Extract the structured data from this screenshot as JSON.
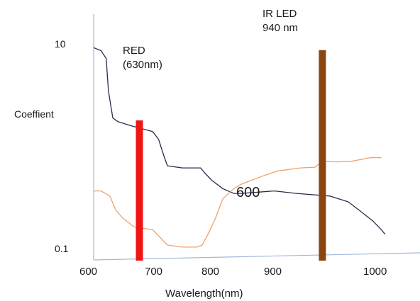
{
  "chart_data": {
    "type": "line",
    "title": "",
    "xlabel": "Wavelength(nm)",
    "ylabel": "Coeffient",
    "y_scale": "log",
    "xlim": [
      600,
      1050
    ],
    "ylim": [
      0.1,
      20
    ],
    "x_ticks": [
      "600",
      "700",
      "800",
      "900",
      "1000"
    ],
    "y_ticks": [
      "10",
      "0.1"
    ],
    "annotation": "600",
    "series": [
      {
        "color": "#2e2a4f",
        "x": [
          600,
          610,
          617,
          620,
          626,
          633,
          650,
          680,
          688,
          695,
          700,
          720,
          745,
          750,
          760,
          775,
          790,
          800,
          845,
          875,
          920,
          945,
          960,
          978,
          990,
          995
        ],
        "y": [
          9.2,
          8.6,
          7.2,
          3.5,
          1.9,
          1.75,
          1.6,
          1.4,
          1.18,
          0.82,
          0.65,
          0.62,
          0.62,
          0.56,
          0.47,
          0.39,
          0.35,
          0.35,
          0.37,
          0.35,
          0.33,
          0.29,
          0.24,
          0.19,
          0.155,
          0.14
        ]
      },
      {
        "color": "#f0a068",
        "x": [
          600,
          610,
          622,
          630,
          640,
          655,
          680,
          700,
          720,
          740,
          747,
          755,
          765,
          775,
          790,
          800,
          830,
          850,
          880,
          900,
          910,
          930,
          950,
          975,
          990
        ],
        "y": [
          0.37,
          0.37,
          0.33,
          0.24,
          0.2,
          0.165,
          0.155,
          0.11,
          0.105,
          0.105,
          0.11,
          0.14,
          0.2,
          0.31,
          0.39,
          0.43,
          0.52,
          0.58,
          0.62,
          0.63,
          0.72,
          0.71,
          0.72,
          0.78,
          0.78
        ]
      }
    ],
    "markers": [
      {
        "label": "RED\n(630nm)",
        "color": "#f01414",
        "x": 662,
        "y_top": 1.8
      },
      {
        "label": "IR LED\n940 nm",
        "color": "#8b4511",
        "x": 910,
        "y_top": 8.7
      }
    ]
  }
}
